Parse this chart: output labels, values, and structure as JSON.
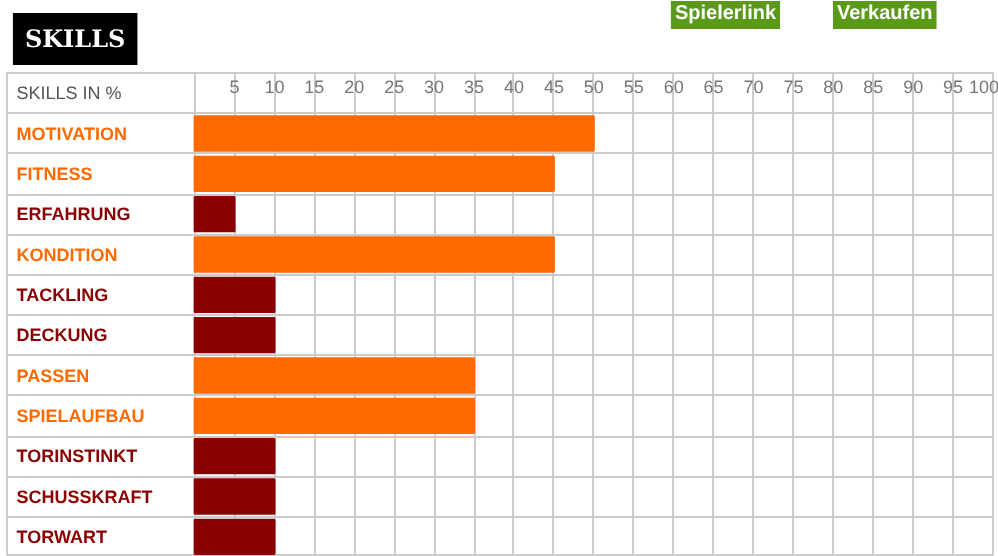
{
  "chart_data": {
    "type": "bar",
    "orientation": "horizontal",
    "title": "SKILLS",
    "xlabel": "SKILLS IN %",
    "categories": [
      "MOTIVATION",
      "FITNESS",
      "ERFAHRUNG",
      "KONDITION",
      "TACKLING",
      "DECKUNG",
      "PASSEN",
      "SPIELAUFBAU",
      "TORINSTINKT",
      "SCHUSSKRAFT",
      "TORWART"
    ],
    "values": [
      50,
      45,
      5,
      45,
      10,
      10,
      35,
      35,
      10,
      10,
      10
    ],
    "colors": [
      "#ff6a00",
      "#ff6a00",
      "#8b0000",
      "#ff6a00",
      "#8b0000",
      "#8b0000",
      "#ff6a00",
      "#ff6a00",
      "#8b0000",
      "#8b0000",
      "#8b0000"
    ],
    "xlim": [
      -23.5,
      100
    ],
    "xticks": [
      5,
      10,
      15,
      20,
      25,
      30,
      35,
      40,
      45,
      50,
      55,
      60,
      65,
      70,
      75,
      80,
      85,
      90,
      95,
      100
    ],
    "grid": true,
    "annotations": [
      "Spielerlink",
      "Verkaufen"
    ]
  }
}
